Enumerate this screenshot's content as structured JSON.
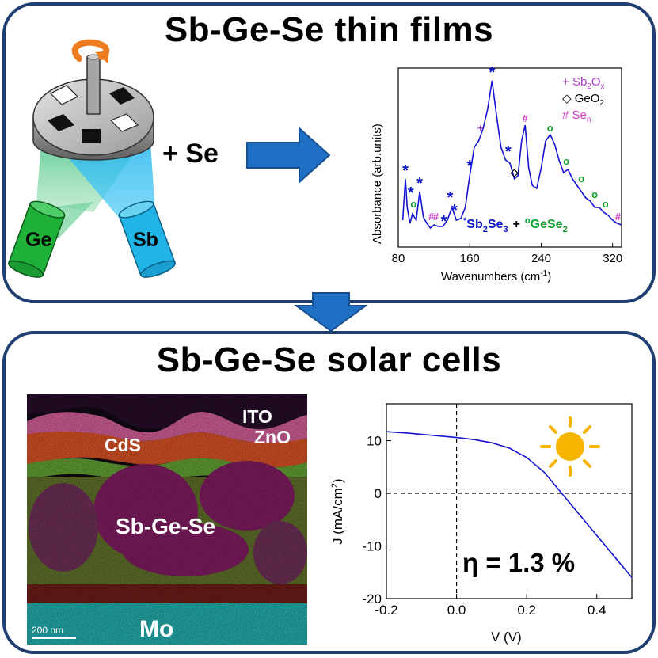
{
  "colors": {
    "panel_border": "#1f3f73",
    "arrow_blue": "#1f6fc4",
    "sb2se3_blue": "#0a14c8",
    "gese2_green": "#12a02e",
    "magenta": "#d23cc8",
    "ge_green": "#1fb03a",
    "sb_cyan": "#21b4e6",
    "sun_yellow": "#f7b500",
    "curve_blue": "#1414d2"
  },
  "top_panel": {
    "title": "Sb-Ge-Se thin films",
    "plus_se": "+ Se",
    "sources": {
      "ge_label": "Ge",
      "sb_label": "Sb"
    }
  },
  "spectrum": {
    "xlabel": "Wavenumbers (cm",
    "xlabel_sup": "-1",
    "xlabel_end": ")",
    "ylabel": "Absorbance (arb.units)",
    "legend": [
      {
        "symbol": "+",
        "text": "Sb",
        "sub": "2",
        "text2": "O",
        "sub2": "x",
        "color": "#b040c8"
      },
      {
        "symbol": "◇",
        "text": "GeO",
        "sub": "2",
        "text2": "",
        "sub2": "",
        "color": "#000000"
      },
      {
        "symbol": "#",
        "text": "Se",
        "sub": "n",
        "text2": "",
        "sub2": "",
        "color": "#d23cc8"
      }
    ],
    "label_sb2se3": {
      "star": "*",
      "text": "Sb",
      "sub1": "2",
      "text2": "Se",
      "sub2": "3"
    },
    "label_plus": "+",
    "label_gese2": {
      "ring": "o",
      "text": "GeSe",
      "sub": "2"
    }
  },
  "chart_data": [
    {
      "type": "line",
      "x": [
        85,
        88,
        90,
        93,
        96,
        100,
        104,
        108,
        112,
        116,
        120,
        125,
        130,
        135,
        140,
        145,
        150,
        155,
        160,
        165,
        170,
        175,
        180,
        185,
        190,
        195,
        200,
        205,
        210,
        214,
        218,
        222,
        226,
        230,
        235,
        240,
        245,
        250,
        255,
        260,
        265,
        270,
        275,
        280,
        285,
        290,
        295,
        300,
        305,
        310,
        315,
        320,
        325,
        330
      ],
      "y": [
        0.12,
        0.38,
        0.2,
        0.1,
        0.16,
        0.12,
        0.3,
        0.14,
        0.1,
        0.07,
        0.09,
        0.08,
        0.08,
        0.12,
        0.2,
        0.12,
        0.13,
        0.2,
        0.4,
        0.58,
        0.62,
        0.7,
        0.82,
        1.0,
        0.78,
        0.58,
        0.5,
        0.48,
        0.38,
        0.4,
        0.62,
        0.72,
        0.45,
        0.34,
        0.32,
        0.45,
        0.62,
        0.66,
        0.6,
        0.5,
        0.42,
        0.44,
        0.38,
        0.34,
        0.3,
        0.26,
        0.24,
        0.2,
        0.2,
        0.17,
        0.15,
        0.12,
        0.1,
        0.09
      ],
      "xlabel": "Wavenumbers (cm-1)",
      "ylabel": "Absorbance (arb.units)",
      "xlim": [
        80,
        330
      ],
      "xticks": [
        "80",
        "160",
        "240",
        "320"
      ],
      "grid": false
    },
    {
      "type": "line",
      "x": [
        -0.2,
        -0.15,
        -0.1,
        -0.05,
        0.0,
        0.05,
        0.1,
        0.15,
        0.2,
        0.25,
        0.3,
        0.35,
        0.4,
        0.45,
        0.5
      ],
      "y": [
        11.7,
        11.5,
        11.2,
        10.9,
        10.6,
        10.2,
        9.6,
        8.6,
        6.8,
        4.0,
        0.0,
        -4.0,
        -8.0,
        -12.0,
        -16.0
      ],
      "xlabel": "V (V)",
      "ylabel": "J (mA/cm2)",
      "xlim": [
        -0.2,
        0.5
      ],
      "ylim": [
        -20,
        17
      ],
      "xticks": [
        "-0.2",
        "0.0",
        "0.2",
        "0.4"
      ],
      "yticks": [
        "10",
        "0",
        "-10",
        "-20"
      ],
      "grid": false
    }
  ],
  "bottom_panel": {
    "title": "Sb-Ge-Se solar cells",
    "tem_labels": {
      "ito": "ITO",
      "zno": "ZnO",
      "cds": "CdS",
      "absorber": "Sb-Ge-Se",
      "mo": "Mo",
      "scale": "200 nm"
    }
  },
  "jv": {
    "xlabel": "V (V)",
    "ylabel": "J (mA/cm",
    "ylabel_sup": "2",
    "ylabel_end": ")",
    "efficiency": "η = 1.3 %"
  }
}
